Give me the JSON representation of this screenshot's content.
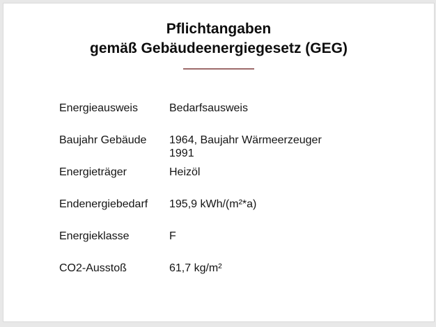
{
  "title": {
    "line1": "Pflichtangaben",
    "line2": "gemäß Gebäudeenergiegesetz (GEG)"
  },
  "colors": {
    "divider": "#9d6a6a",
    "frame": "#e8e8e8",
    "page_background": "#ffffff",
    "text": "#141414"
  },
  "fields": [
    {
      "label": "Energieausweis",
      "value": "Bedarfsausweis"
    },
    {
      "label": "Baujahr Gebäude",
      "value": "1964, Baujahr Wärmeerzeuger 1991"
    },
    {
      "label": "Energieträger",
      "value": "Heizöl"
    },
    {
      "label": "Endenergiebedarf",
      "value": "195,9 kWh/(m²*a)"
    },
    {
      "label": "Energieklasse",
      "value": "F"
    },
    {
      "label": "CO2-Ausstoß",
      "value": "61,7 kg/m²"
    }
  ]
}
